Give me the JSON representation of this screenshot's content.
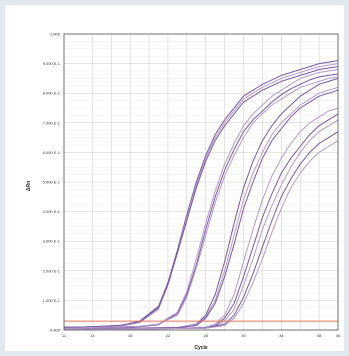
{
  "chart_data": {
    "type": "line",
    "title": "",
    "xlabel": "Cycle",
    "ylabel": "ΔRn",
    "xlim": [
      11,
      40
    ],
    "ylim": [
      0,
      1.0
    ],
    "y_scale": "linear",
    "grid": true,
    "legend": "none",
    "x_ticks": [
      11,
      14,
      16,
      18,
      20,
      22,
      24,
      26,
      28,
      30,
      32,
      34,
      36,
      38,
      40
    ],
    "x_tick_labels": [
      "11",
      "14",
      "",
      "18",
      "",
      "22",
      "",
      "26",
      "",
      "30",
      "",
      "34",
      "",
      "38",
      "40"
    ],
    "y_ticks": [
      0,
      0.1,
      0.2,
      0.3,
      0.4,
      0.5,
      0.6,
      0.7,
      0.8,
      0.9,
      1.0
    ],
    "y_tick_labels": [
      "0.000",
      "1.000 E-1",
      "2.000 E-1",
      "3.000 E-1",
      "4.000 E-1",
      "5.000 E-1",
      "6.000 E-1",
      "7.000 E-1",
      "8.000 E-1",
      "9.000 E-1",
      "1.000"
    ],
    "threshold": {
      "value": 0.03,
      "color": "#e2765a"
    },
    "series_color": "#7a5aa0",
    "series_color_light": "#b59acb",
    "series": [
      {
        "x": [
          11,
          13,
          15,
          17,
          19,
          21,
          22,
          23,
          24,
          25,
          26,
          27,
          28,
          29,
          30,
          31,
          32,
          33,
          34,
          35,
          36,
          37,
          38,
          39,
          40
        ],
        "values": [
          0.01,
          0.01,
          0.012,
          0.015,
          0.03,
          0.08,
          0.16,
          0.27,
          0.39,
          0.5,
          0.59,
          0.66,
          0.71,
          0.75,
          0.79,
          0.81,
          0.83,
          0.845,
          0.86,
          0.87,
          0.88,
          0.89,
          0.9,
          0.905,
          0.91
        ]
      },
      {
        "x": [
          11,
          13,
          15,
          17,
          19,
          21,
          22,
          23,
          24,
          25,
          26,
          27,
          28,
          29,
          30,
          31,
          32,
          33,
          34,
          35,
          36,
          37,
          38,
          39,
          40
        ],
        "values": [
          0.005,
          0.007,
          0.009,
          0.012,
          0.025,
          0.07,
          0.15,
          0.26,
          0.38,
          0.49,
          0.58,
          0.65,
          0.7,
          0.74,
          0.78,
          0.8,
          0.82,
          0.835,
          0.85,
          0.86,
          0.87,
          0.88,
          0.89,
          0.895,
          0.9
        ]
      },
      {
        "x": [
          11,
          13,
          15,
          17,
          19,
          21,
          22,
          23,
          24,
          25,
          26,
          27,
          28,
          29,
          30,
          31,
          32,
          33,
          34,
          35,
          36,
          37,
          38,
          39,
          40
        ],
        "values": [
          0.008,
          0.01,
          0.013,
          0.016,
          0.028,
          0.075,
          0.155,
          0.26,
          0.37,
          0.48,
          0.57,
          0.64,
          0.69,
          0.73,
          0.77,
          0.79,
          0.81,
          0.825,
          0.84,
          0.85,
          0.86,
          0.87,
          0.88,
          0.885,
          0.89
        ]
      },
      {
        "x": [
          11,
          13,
          15,
          17,
          19,
          21,
          23,
          24,
          25,
          26,
          27,
          28,
          29,
          30,
          31,
          32,
          33,
          34,
          35,
          36,
          37,
          38,
          39,
          40
        ],
        "values": [
          0.005,
          0.006,
          0.008,
          0.01,
          0.012,
          0.02,
          0.06,
          0.13,
          0.24,
          0.36,
          0.47,
          0.56,
          0.63,
          0.69,
          0.73,
          0.76,
          0.79,
          0.81,
          0.83,
          0.85,
          0.86,
          0.87,
          0.875,
          0.88
        ]
      },
      {
        "x": [
          11,
          13,
          15,
          17,
          19,
          21,
          23,
          24,
          25,
          26,
          27,
          28,
          29,
          30,
          31,
          32,
          33,
          34,
          35,
          36,
          37,
          38,
          39,
          40
        ],
        "values": [
          0.004,
          0.005,
          0.007,
          0.009,
          0.011,
          0.018,
          0.055,
          0.12,
          0.22,
          0.34,
          0.45,
          0.54,
          0.61,
          0.67,
          0.71,
          0.74,
          0.77,
          0.795,
          0.815,
          0.83,
          0.845,
          0.855,
          0.86,
          0.865
        ]
      },
      {
        "x": [
          11,
          13,
          15,
          17,
          19,
          21,
          23,
          24,
          25,
          26,
          27,
          28,
          29,
          30,
          31,
          32,
          33,
          34,
          35,
          36,
          37,
          38,
          39,
          40
        ],
        "values": [
          0.006,
          0.007,
          0.009,
          0.011,
          0.013,
          0.02,
          0.05,
          0.11,
          0.21,
          0.32,
          0.43,
          0.52,
          0.59,
          0.65,
          0.7,
          0.73,
          0.76,
          0.78,
          0.8,
          0.82,
          0.83,
          0.84,
          0.85,
          0.855
        ]
      },
      {
        "x": [
          11,
          15,
          19,
          23,
          25,
          26,
          27,
          28,
          29,
          30,
          31,
          32,
          33,
          34,
          35,
          36,
          37,
          38,
          39,
          40
        ],
        "values": [
          0.003,
          0.005,
          0.006,
          0.008,
          0.02,
          0.05,
          0.12,
          0.23,
          0.36,
          0.48,
          0.57,
          0.64,
          0.69,
          0.73,
          0.76,
          0.79,
          0.81,
          0.83,
          0.84,
          0.85
        ]
      },
      {
        "x": [
          11,
          15,
          19,
          23,
          25,
          26,
          27,
          28,
          29,
          30,
          31,
          32,
          33,
          34,
          35,
          36,
          37,
          38,
          39,
          40
        ],
        "values": [
          0.004,
          0.005,
          0.007,
          0.009,
          0.018,
          0.045,
          0.1,
          0.2,
          0.32,
          0.44,
          0.53,
          0.6,
          0.66,
          0.7,
          0.73,
          0.76,
          0.78,
          0.8,
          0.81,
          0.82
        ]
      },
      {
        "x": [
          11,
          15,
          19,
          23,
          25,
          26,
          27,
          28,
          29,
          30,
          31,
          32,
          33,
          34,
          35,
          36,
          37,
          38,
          39,
          40
        ],
        "values": [
          0.003,
          0.004,
          0.006,
          0.008,
          0.015,
          0.04,
          0.09,
          0.18,
          0.29,
          0.41,
          0.5,
          0.58,
          0.64,
          0.68,
          0.72,
          0.75,
          0.77,
          0.79,
          0.8,
          0.81
        ]
      },
      {
        "x": [
          11,
          15,
          19,
          23,
          26,
          27,
          28,
          29,
          30,
          31,
          32,
          33,
          34,
          35,
          36,
          37,
          38,
          39,
          40
        ],
        "values": [
          0.002,
          0.003,
          0.004,
          0.005,
          0.009,
          0.02,
          0.05,
          0.12,
          0.23,
          0.34,
          0.44,
          0.52,
          0.58,
          0.63,
          0.67,
          0.7,
          0.72,
          0.74,
          0.75
        ]
      },
      {
        "x": [
          11,
          15,
          19,
          23,
          26,
          27,
          28,
          29,
          30,
          31,
          32,
          33,
          34,
          35,
          36,
          37,
          38,
          39,
          40
        ],
        "values": [
          0.003,
          0.004,
          0.004,
          0.006,
          0.008,
          0.015,
          0.04,
          0.09,
          0.18,
          0.28,
          0.38,
          0.46,
          0.53,
          0.58,
          0.62,
          0.66,
          0.69,
          0.71,
          0.73
        ]
      },
      {
        "x": [
          11,
          15,
          19,
          23,
          26,
          27,
          28,
          29,
          30,
          31,
          32,
          33,
          34,
          35,
          36,
          37,
          38,
          39,
          40
        ],
        "values": [
          0.002,
          0.003,
          0.004,
          0.005,
          0.007,
          0.012,
          0.03,
          0.07,
          0.15,
          0.24,
          0.34,
          0.42,
          0.49,
          0.55,
          0.6,
          0.64,
          0.67,
          0.69,
          0.71
        ]
      },
      {
        "x": [
          11,
          15,
          19,
          23,
          26,
          28,
          29,
          30,
          31,
          32,
          33,
          34,
          35,
          36,
          37,
          38,
          39,
          40
        ],
        "values": [
          0.002,
          0.003,
          0.004,
          0.005,
          0.006,
          0.02,
          0.05,
          0.11,
          0.19,
          0.28,
          0.37,
          0.45,
          0.51,
          0.56,
          0.6,
          0.63,
          0.65,
          0.67
        ]
      },
      {
        "x": [
          11,
          15,
          19,
          23,
          26,
          28,
          29,
          30,
          31,
          32,
          33,
          34,
          35,
          36,
          37,
          38,
          39,
          40
        ],
        "values": [
          0.003,
          0.003,
          0.004,
          0.005,
          0.006,
          0.015,
          0.04,
          0.09,
          0.16,
          0.24,
          0.33,
          0.41,
          0.48,
          0.53,
          0.57,
          0.6,
          0.62,
          0.64
        ]
      }
    ]
  }
}
